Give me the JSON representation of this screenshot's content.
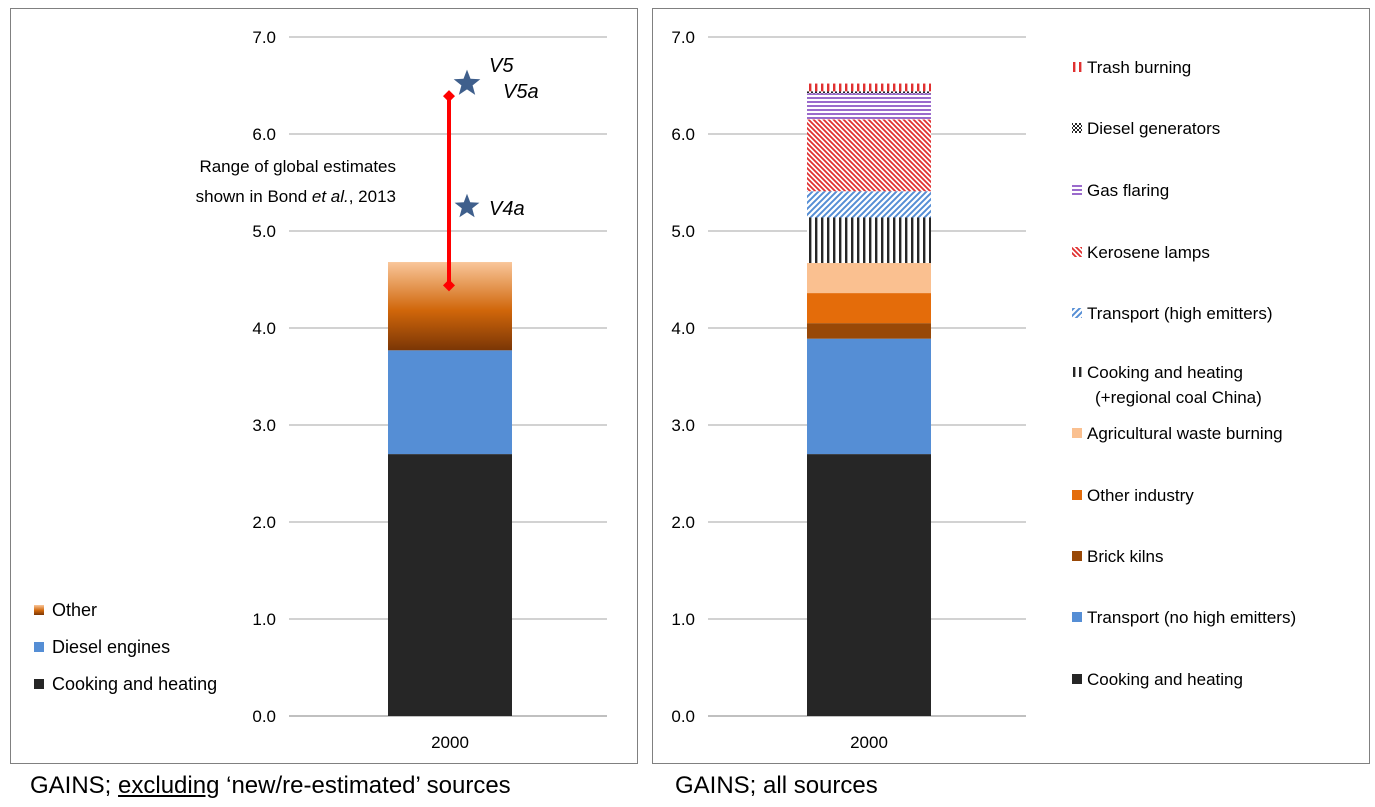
{
  "left_chart": {
    "annotation_line1": "Range of global estimates",
    "annotation_line2_prefix": "shown in Bond ",
    "annotation_line2_italic": "et al.",
    "annotation_line2_suffix": ", 2013",
    "markers": [
      {
        "label": "V5",
        "value": 6.52
      },
      {
        "label": "V5a",
        "value": 6.52
      },
      {
        "label": "V4a",
        "value": 5.25
      }
    ],
    "range": {
      "low": 4.44,
      "high": 6.39
    }
  },
  "chart_data": [
    {
      "type": "bar",
      "stacked": true,
      "categories": [
        "2000"
      ],
      "ylim": [
        0,
        7
      ],
      "yticks": [
        "0.0",
        "1.0",
        "2.0",
        "3.0",
        "4.0",
        "5.0",
        "6.0",
        "7.0"
      ],
      "grid": true,
      "legend_position": "bottom-left",
      "series": [
        {
          "name": "Cooking and heating",
          "values": [
            2.7
          ],
          "color": "#262626",
          "pattern": "solid"
        },
        {
          "name": "Diesel engines",
          "values": [
            1.07
          ],
          "color": "#558ed5",
          "pattern": "solid"
        },
        {
          "name": "Other",
          "values": [
            0.91
          ],
          "color": "#e36c09",
          "pattern": "gradient"
        }
      ]
    },
    {
      "type": "bar",
      "stacked": true,
      "categories": [
        "2000"
      ],
      "ylim": [
        0,
        7
      ],
      "yticks": [
        "0.0",
        "1.0",
        "2.0",
        "3.0",
        "4.0",
        "5.0",
        "6.0",
        "7.0"
      ],
      "grid": true,
      "legend_position": "right",
      "series": [
        {
          "name": "Cooking and heating",
          "values": [
            2.7
          ],
          "color": "#262626",
          "pattern": "solid"
        },
        {
          "name": "Transport (no high emitters)",
          "values": [
            1.19
          ],
          "color": "#558ed5",
          "pattern": "solid"
        },
        {
          "name": "Brick kilns",
          "values": [
            0.16
          ],
          "color": "#984807",
          "pattern": "solid"
        },
        {
          "name": "Other industry",
          "values": [
            0.31
          ],
          "color": "#e46c0a",
          "pattern": "solid"
        },
        {
          "name": "Agricultural waste burning",
          "values": [
            0.31
          ],
          "color": "#fac090",
          "pattern": "solid"
        },
        {
          "name": "Cooking and heating",
          "name_line2": "(+regional coal China)",
          "values": [
            0.47
          ],
          "color": "#262626",
          "pattern": "vertical"
        },
        {
          "name": "Transport (high emitters)",
          "values": [
            0.27
          ],
          "color": "#558ed5",
          "pattern": "diagonal-up"
        },
        {
          "name": "Kerosene lamps",
          "values": [
            0.74
          ],
          "color": "#e03030",
          "pattern": "diagonal-down"
        },
        {
          "name": "Gas flaring",
          "values": [
            0.27
          ],
          "color": "#9b6bcc",
          "pattern": "horizontal"
        },
        {
          "name": "Diesel generators",
          "values": [
            0.02
          ],
          "color": "#262626",
          "pattern": "checker"
        },
        {
          "name": "Trash burning",
          "values": [
            0.08
          ],
          "color": "#e03030",
          "pattern": "vertical"
        }
      ]
    }
  ],
  "captions": {
    "left_prefix": "GAINS; ",
    "left_underlined": "excluding",
    "left_suffix": " ‘new/re-estimated’ sources",
    "right": "GAINS; all sources"
  }
}
